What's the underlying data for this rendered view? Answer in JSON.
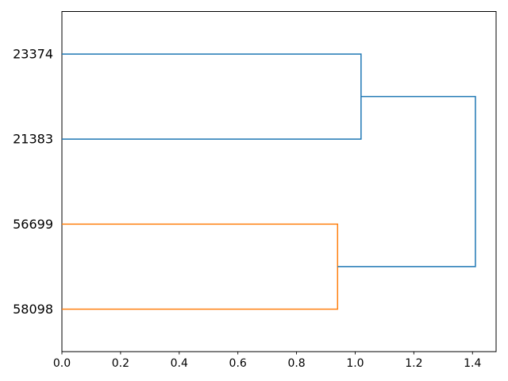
{
  "figure": {
    "background": "#ffffff",
    "title": ""
  },
  "chart_data": {
    "type": "dendrogram",
    "orientation": "right",
    "title": "",
    "xlabel": "",
    "ylabel": "",
    "grid": false,
    "legend": null,
    "axis_color": "#000000",
    "text_color": "#000000",
    "line_colors": {
      "cluster_1": "#1f77b4",
      "cluster_2": "#ff7f0e",
      "above_threshold": "#1f77b4"
    },
    "leaves": [
      {
        "label": "23374",
        "position": 35
      },
      {
        "label": "21383",
        "position": 25
      },
      {
        "label": "56699",
        "position": 15
      },
      {
        "label": "58098",
        "position": 5
      }
    ],
    "links": [
      {
        "joins": [
          "23374",
          "21383"
        ],
        "distance": 1.02,
        "color": "#1f77b4",
        "x": [
          0,
          1.02,
          1.02,
          0
        ],
        "y": [
          35,
          35,
          25,
          25
        ]
      },
      {
        "joins": [
          "56699",
          "58098"
        ],
        "distance": 0.94,
        "color": "#ff7f0e",
        "x": [
          0,
          0.94,
          0.94,
          0
        ],
        "y": [
          15,
          15,
          5,
          5
        ]
      },
      {
        "joins": [
          "(23374,21383)",
          "(56699,58098)"
        ],
        "distance": 1.41,
        "color": "#1f77b4",
        "x": [
          1.02,
          1.41,
          1.41,
          0.94
        ],
        "y": [
          30,
          30,
          10,
          10
        ]
      }
    ],
    "xticks": [
      0.0,
      0.2,
      0.4,
      0.6,
      0.8,
      1.0,
      1.2,
      1.4
    ],
    "xtick_labels": [
      "0.0",
      "0.2",
      "0.4",
      "0.6",
      "0.8",
      "1.0",
      "1.2",
      "1.4"
    ],
    "xlim": [
      0,
      1.4805
    ],
    "ylim": [
      0,
      40
    ]
  }
}
